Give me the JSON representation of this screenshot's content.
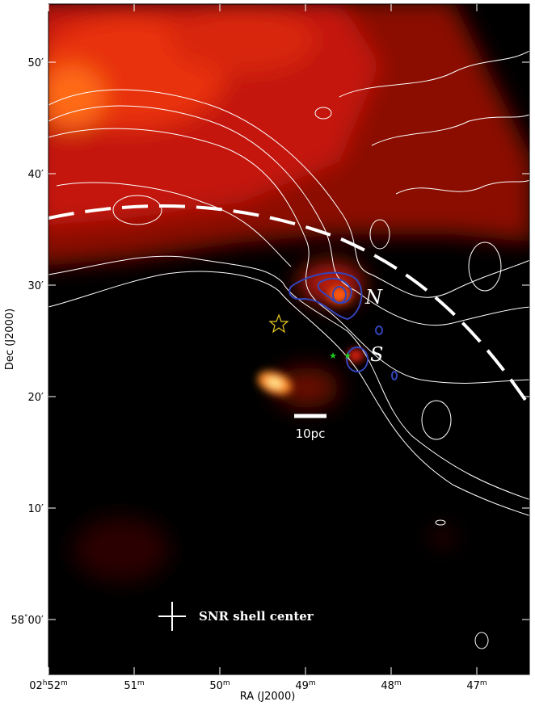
{
  "axes": {
    "x_label": "RA (J2000)",
    "y_label": "Dec (J2000)",
    "x_ticks": [
      [
        "02",
        "h",
        "52",
        "m"
      ],
      [
        "51",
        "m"
      ],
      [
        "50",
        "m"
      ],
      [
        "49",
        "m"
      ],
      [
        "48",
        "m"
      ],
      [
        "47",
        "m"
      ]
    ],
    "y_ticks": [
      [
        "50′"
      ],
      [
        "40′"
      ],
      [
        "30′"
      ],
      [
        "20′"
      ],
      [
        "10′"
      ],
      [
        "58",
        "°",
        "00′"
      ]
    ]
  },
  "annotations": {
    "north": "N",
    "south": "S",
    "scale_bar": "10pc",
    "marker": "SNR shell center"
  }
}
